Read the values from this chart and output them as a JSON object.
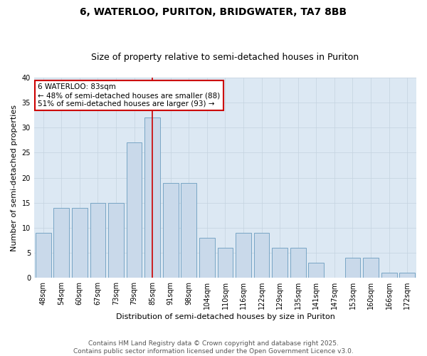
{
  "title": "6, WATERLOO, PURITON, BRIDGWATER, TA7 8BB",
  "subtitle": "Size of property relative to semi-detached houses in Puriton",
  "xlabel": "Distribution of semi-detached houses by size in Puriton",
  "ylabel": "Number of semi-detached properties",
  "categories": [
    "48sqm",
    "54sqm",
    "60sqm",
    "67sqm",
    "73sqm",
    "79sqm",
    "85sqm",
    "91sqm",
    "98sqm",
    "104sqm",
    "110sqm",
    "116sqm",
    "122sqm",
    "129sqm",
    "135sqm",
    "141sqm",
    "147sqm",
    "153sqm",
    "160sqm",
    "166sqm",
    "172sqm"
  ],
  "values": [
    9,
    14,
    14,
    15,
    15,
    27,
    32,
    19,
    19,
    8,
    6,
    9,
    9,
    6,
    6,
    3,
    0,
    4,
    4,
    1,
    1
  ],
  "bar_color": "#c9d9ea",
  "bar_edge_color": "#6a9cbf",
  "grid_color": "#c5d3e0",
  "background_color": "#dce8f3",
  "annotation_text": "6 WATERLOO: 83sqm\n← 48% of semi-detached houses are smaller (88)\n51% of semi-detached houses are larger (93) →",
  "annotation_box_facecolor": "#ffffff",
  "annotation_border_color": "#cc0000",
  "reference_line_color": "#cc0000",
  "reference_line_index": 6,
  "ylim": [
    0,
    40
  ],
  "yticks": [
    0,
    5,
    10,
    15,
    20,
    25,
    30,
    35,
    40
  ],
  "footer_text": "Contains HM Land Registry data © Crown copyright and database right 2025.\nContains public sector information licensed under the Open Government Licence v3.0.",
  "title_fontsize": 10,
  "subtitle_fontsize": 9,
  "axis_label_fontsize": 8,
  "tick_fontsize": 7,
  "annotation_fontsize": 7.5,
  "footer_fontsize": 6.5
}
